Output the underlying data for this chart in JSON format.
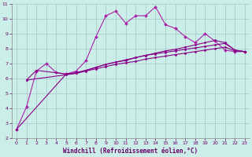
{
  "xlabel": "Windchill (Refroidissement éolien,°C)",
  "background_color": "#cceee8",
  "line_color": "#880088",
  "line_color2": "#aa22aa",
  "grid_color": "#aacccc",
  "xlim": [
    -0.5,
    23.5
  ],
  "ylim": [
    2,
    11
  ],
  "xticks": [
    0,
    1,
    2,
    3,
    4,
    5,
    6,
    7,
    8,
    9,
    10,
    11,
    12,
    13,
    14,
    15,
    16,
    17,
    18,
    19,
    20,
    21,
    22,
    23
  ],
  "yticks": [
    2,
    3,
    4,
    5,
    6,
    7,
    8,
    9,
    10,
    11
  ],
  "series1_x": [
    0,
    1,
    2,
    3,
    4,
    5,
    6,
    7,
    8,
    9,
    10,
    11,
    12,
    13,
    14,
    15,
    16,
    17,
    18,
    19,
    20,
    21,
    22,
    23
  ],
  "series1_y": [
    2.6,
    4.1,
    6.5,
    7.0,
    6.4,
    6.3,
    6.5,
    7.2,
    8.8,
    10.2,
    10.5,
    9.7,
    10.2,
    10.2,
    10.8,
    9.6,
    9.35,
    8.8,
    8.4,
    9.0,
    8.5,
    7.9,
    7.8,
    7.8
  ],
  "series2_x": [
    1,
    2,
    5,
    6,
    7,
    8,
    9,
    10,
    11,
    12,
    13,
    14,
    15,
    16,
    17,
    18,
    19,
    20,
    21,
    22,
    23
  ],
  "series2_y": [
    5.9,
    6.55,
    6.3,
    6.4,
    6.55,
    6.75,
    6.95,
    7.1,
    7.2,
    7.4,
    7.55,
    7.7,
    7.85,
    7.95,
    8.1,
    8.25,
    8.4,
    8.55,
    8.4,
    7.9,
    7.8
  ],
  "series3_x": [
    0,
    5,
    6,
    7,
    8,
    9,
    10,
    11,
    12,
    13,
    14,
    15,
    16,
    17,
    18,
    19,
    20,
    21,
    22,
    23
  ],
  "series3_y": [
    2.6,
    6.3,
    6.35,
    6.55,
    6.75,
    6.95,
    7.1,
    7.25,
    7.4,
    7.55,
    7.65,
    7.75,
    7.85,
    7.95,
    8.05,
    8.15,
    8.25,
    8.35,
    7.9,
    7.8
  ],
  "series4_x": [
    1,
    5,
    6,
    7,
    8,
    9,
    10,
    11,
    12,
    13,
    14,
    15,
    16,
    17,
    18,
    19,
    20,
    21,
    22,
    23
  ],
  "series4_y": [
    5.9,
    6.25,
    6.35,
    6.5,
    6.65,
    6.8,
    6.95,
    7.05,
    7.15,
    7.3,
    7.4,
    7.5,
    7.6,
    7.7,
    7.8,
    7.9,
    8.0,
    8.1,
    7.85,
    7.8
  ]
}
